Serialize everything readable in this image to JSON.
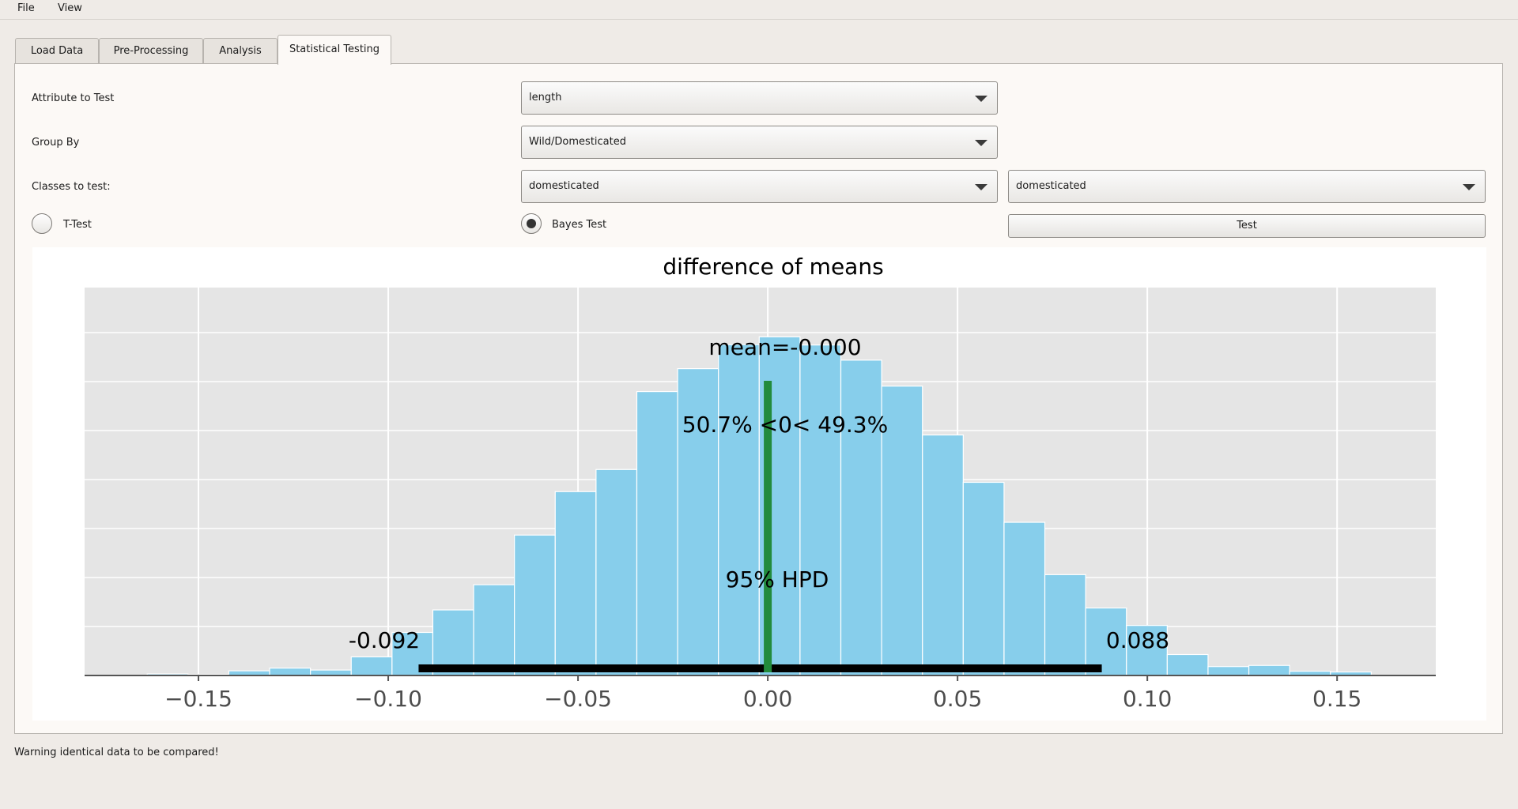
{
  "menu": {
    "file": "File",
    "view": "View"
  },
  "tabs": [
    "Load Data",
    "Pre-Processing",
    "Analysis",
    "Statistical Testing"
  ],
  "form": {
    "attribute_label": "Attribute to Test",
    "attribute_value": "length",
    "groupby_label": "Group By",
    "groupby_value": "Wild/Domesticated",
    "classes_label": "Classes to test:",
    "class1_value": "domesticated",
    "class2_value": "domesticated",
    "ttest_label": "T-Test",
    "bayes_label": "Bayes Test",
    "test_button": "Test",
    "selected_test": "Bayes Test"
  },
  "status": "Warning identical data to be compared!",
  "colors": {
    "bar": "#87ceeb",
    "hpd_line": "#000000",
    "mean_line": "#228b3c",
    "plot_bg": "#e5e5e5"
  },
  "chart_data": {
    "type": "bar",
    "title": "difference of means",
    "xlim": [
      -0.18,
      0.176
    ],
    "ylim": [
      0,
      1
    ],
    "ticks": [
      {
        "v": -0.15,
        "label": "−0.15"
      },
      {
        "v": -0.1,
        "label": "−0.10"
      },
      {
        "v": -0.05,
        "label": "−0.05"
      },
      {
        "v": 0.0,
        "label": "0.00"
      },
      {
        "v": 0.05,
        "label": "0.05"
      },
      {
        "v": 0.1,
        "label": "0.10"
      },
      {
        "v": 0.15,
        "label": "0.15"
      }
    ],
    "bin_start": -0.1635,
    "bin_width": 0.01075,
    "values": [
      0.004,
      0.003,
      0.012,
      0.019,
      0.014,
      0.048,
      0.111,
      0.169,
      0.234,
      0.362,
      0.474,
      0.531,
      0.732,
      0.791,
      0.853,
      0.873,
      0.852,
      0.813,
      0.746,
      0.62,
      0.498,
      0.395,
      0.26,
      0.174,
      0.129,
      0.054,
      0.023,
      0.026,
      0.011,
      0.009
    ],
    "mean_label": "mean=-0.000",
    "mean": 0.0,
    "prob_label": "50.7% <0< 49.3%",
    "hpd_label": "95% HPD",
    "hpd_low": -0.092,
    "hpd_high": 0.088,
    "hpd_low_label": "-0.092",
    "hpd_high_label": "0.088"
  }
}
